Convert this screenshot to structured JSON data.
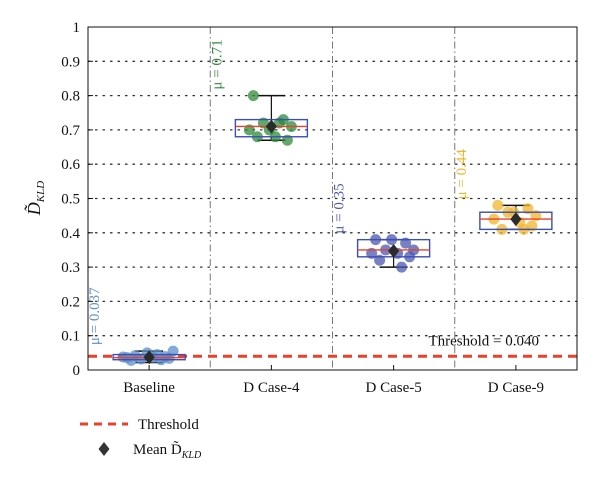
{
  "chart_data": {
    "type": "box",
    "ylabel": "D̃",
    "ylabel_sub": "KLD",
    "ylim": [
      0,
      1
    ],
    "yticks": [
      "0",
      "0.1",
      "0.2",
      "0.3",
      "0.4",
      "0.5",
      "0.6",
      "0.7",
      "0.8",
      "0.9",
      "1"
    ],
    "grid": "dotted",
    "categories": [
      "Baseline",
      "D Case-4",
      "D Case-5",
      "D Case-9"
    ],
    "groups": [
      {
        "category": "Baseline",
        "color": "#5b8fc9",
        "mean_label": "μ = 0.037",
        "mean": 0.037,
        "median": 0.036,
        "q1": 0.03,
        "q3": 0.045,
        "whisker_low": 0.022,
        "whisker_high": 0.055,
        "points": [
          0.028,
          0.03,
          0.032,
          0.034,
          0.036,
          0.037,
          0.039,
          0.042,
          0.045,
          0.05,
          0.055,
          0.038
        ]
      },
      {
        "category": "D Case-4",
        "color": "#2e8b3a",
        "mean_label": "μ = 0.71",
        "mean": 0.71,
        "median": 0.71,
        "q1": 0.68,
        "q3": 0.73,
        "whisker_low": 0.67,
        "whisker_high": 0.8,
        "points": [
          0.8,
          0.73,
          0.72,
          0.71,
          0.7,
          0.68,
          0.67,
          0.68,
          0.72,
          0.7
        ]
      },
      {
        "category": "D Case-5",
        "color": "#4a57b0",
        "mean_label": "μ = 0.35",
        "mean": 0.347,
        "median": 0.35,
        "q1": 0.33,
        "q3": 0.38,
        "whisker_low": 0.3,
        "whisker_high": 0.38,
        "points": [
          0.38,
          0.37,
          0.35,
          0.35,
          0.34,
          0.34,
          0.33,
          0.32,
          0.3,
          0.38
        ]
      },
      {
        "category": "D Case-9",
        "color": "#f2b429",
        "mean_label": "μ = 0.44",
        "mean": 0.44,
        "median": 0.44,
        "q1": 0.41,
        "q3": 0.46,
        "whisker_low": 0.41,
        "whisker_high": 0.48,
        "points": [
          0.48,
          0.47,
          0.46,
          0.45,
          0.44,
          0.43,
          0.42,
          0.41,
          0.41,
          0.46
        ]
      }
    ],
    "threshold": {
      "value": 0.04,
      "label": "Threshold = 0.040",
      "color": "#e8412c"
    },
    "median_line_color": "#e8412c",
    "box_color": "#3b4fb5",
    "legend": [
      {
        "label": "Threshold",
        "type": "dashed-line",
        "color": "#e8412c"
      },
      {
        "label": "Mean D̃",
        "label_sub": "KLD",
        "type": "diamond",
        "color": "#333333"
      }
    ],
    "legend_placement": "bottom-left"
  }
}
